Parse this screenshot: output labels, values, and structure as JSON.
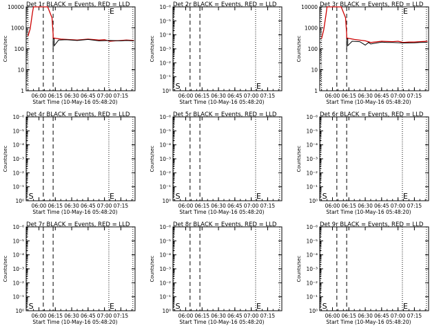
{
  "chart_data": [
    {
      "type": "line",
      "title": "Det 1r BLACK = Events, RED = LLD",
      "xlabel": "Start Time (10-May-16 05:48:20)",
      "ylabel": "Counts/sec",
      "scale": "log",
      "y_ticks": [
        "1",
        "10",
        "100",
        "1000",
        "10000"
      ],
      "x_ticks": [
        "06:00",
        "06:15",
        "06:30",
        "06:45",
        "07:00",
        "07:15"
      ],
      "x_range": [
        "05:48:20",
        "07:28"
      ],
      "y_range": [
        1,
        10000
      ],
      "markers": [
        {
          "label": "E",
          "time": "07:04"
        }
      ],
      "dashed_lines": [
        "05:50",
        "06:04",
        "06:13",
        "07:04",
        "07:26"
      ],
      "series": [
        {
          "color": "#cc0000",
          "x": [
            "05:50",
            "05:52",
            "05:54",
            "05:55",
            "05:56",
            "06:06",
            "06:08",
            "06:12",
            "06:13",
            "06:13",
            "06:20",
            "06:30",
            "06:35",
            "06:45",
            "06:55",
            "07:00",
            "07:05",
            "07:10",
            "07:15",
            "07:20",
            "07:27"
          ],
          "y": [
            400,
            900,
            5000,
            10000,
            10000,
            10000,
            10000,
            3000,
            500,
            330,
            290,
            270,
            260,
            290,
            260,
            270,
            230,
            240,
            250,
            260,
            250
          ]
        },
        {
          "color": "#000000",
          "x": [
            "06:13",
            "06:13",
            "06:14",
            "06:14",
            "06:18",
            "06:25",
            "06:35",
            "06:45",
            "06:55",
            "07:05",
            "07:15",
            "07:20",
            "07:27"
          ],
          "y": [
            90,
            300,
            300,
            140,
            260,
            270,
            250,
            280,
            240,
            250,
            240,
            250,
            240
          ]
        }
      ]
    },
    {
      "type": "line",
      "title": "Det 2r BLACK = Events, RED = LLD",
      "xlabel": "Start Time (10-May-16 05:48:20)",
      "ylabel": "Counts/sec",
      "scale": "log",
      "y_ticks": [
        "10⁰",
        "10⁻¹",
        "10⁻²",
        "10⁻³",
        "10⁻⁴",
        "10⁻⁵",
        "10⁻⁶"
      ],
      "x_ticks": [
        "06:00",
        "06:15",
        "06:30",
        "06:45",
        "07:00",
        "07:15"
      ],
      "x_range": [
        "05:48:20",
        "07:28"
      ],
      "y_range": [
        1,
        1e-06
      ],
      "markers": [
        {
          "label": "S",
          "time": "05:50"
        },
        {
          "label": "E",
          "time": "07:04"
        }
      ],
      "dashed_lines": [
        "05:49",
        "06:04",
        "06:13",
        "07:04",
        "07:26"
      ],
      "series": []
    },
    {
      "type": "line",
      "title": "Det 3r BLACK = Events, RED = LLD",
      "xlabel": "Start Time (10-May-16 05:48:20)",
      "ylabel": "Counts/sec",
      "scale": "log",
      "y_ticks": [
        "1",
        "10",
        "100",
        "1000",
        "10000"
      ],
      "x_ticks": [
        "06:00",
        "06:15",
        "06:30",
        "06:45",
        "07:00",
        "07:15"
      ],
      "x_range": [
        "05:48:20",
        "07:28"
      ],
      "y_range": [
        1,
        10000
      ],
      "markers": [
        {
          "label": "E",
          "time": "07:04"
        }
      ],
      "dashed_lines": [
        "05:50",
        "06:04",
        "06:13",
        "07:04",
        "07:26"
      ],
      "series": [
        {
          "color": "#cc0000",
          "x": [
            "05:50",
            "05:52",
            "05:54",
            "05:55",
            "05:56",
            "06:06",
            "06:08",
            "06:12",
            "06:13",
            "06:13",
            "06:20",
            "06:30",
            "06:35",
            "06:45",
            "06:55",
            "07:00",
            "07:05",
            "07:10",
            "07:15",
            "07:20",
            "07:27"
          ],
          "y": [
            300,
            800,
            4000,
            10000,
            10000,
            10000,
            10000,
            3000,
            500,
            330,
            280,
            240,
            200,
            230,
            220,
            230,
            200,
            210,
            210,
            220,
            230
          ]
        },
        {
          "color": "#000000",
          "x": [
            "06:13",
            "06:13",
            "06:14",
            "06:14",
            "06:18",
            "06:25",
            "06:30",
            "06:33",
            "06:35",
            "06:45",
            "06:50",
            "06:55",
            "07:05",
            "07:15",
            "07:20",
            "07:27"
          ],
          "y": [
            90,
            300,
            300,
            140,
            230,
            220,
            150,
            200,
            170,
            210,
            200,
            200,
            190,
            195,
            200,
            205
          ]
        }
      ]
    },
    {
      "type": "line",
      "title": "Det 4r BLACK = Events, RED = LLD",
      "xlabel": "Start Time (10-May-16 05:48:20)",
      "ylabel": "Counts/sec",
      "scale": "log",
      "y_ticks": [
        "10⁰",
        "10⁻¹",
        "10⁻²",
        "10⁻³",
        "10⁻⁴",
        "10⁻⁵",
        "10⁻⁶"
      ],
      "x_ticks": [
        "06:00",
        "06:15",
        "06:30",
        "06:45",
        "07:00",
        "07:15"
      ],
      "x_range": [
        "05:48:20",
        "07:28"
      ],
      "y_range": [
        1,
        1e-06
      ],
      "markers": [
        {
          "label": "S",
          "time": "05:50"
        },
        {
          "label": "E",
          "time": "07:04"
        }
      ],
      "dashed_lines": [
        "05:49",
        "06:04",
        "06:13",
        "07:04",
        "07:26"
      ],
      "series": []
    },
    {
      "type": "line",
      "title": "Det 5r BLACK = Events, RED = LLD",
      "xlabel": "Start Time (10-May-16 05:48:20)",
      "ylabel": "Counts/sec",
      "scale": "log",
      "y_ticks": [
        "10⁰",
        "10⁻¹",
        "10⁻²",
        "10⁻³",
        "10⁻⁴",
        "10⁻⁵",
        "10⁻⁶"
      ],
      "x_ticks": [
        "06:00",
        "06:15",
        "06:30",
        "06:45",
        "07:00",
        "07:15"
      ],
      "x_range": [
        "05:48:20",
        "07:28"
      ],
      "y_range": [
        1,
        1e-06
      ],
      "markers": [
        {
          "label": "S",
          "time": "05:50"
        },
        {
          "label": "E",
          "time": "07:04"
        }
      ],
      "dashed_lines": [
        "05:49",
        "06:04",
        "06:13",
        "07:04",
        "07:26"
      ],
      "series": []
    },
    {
      "type": "line",
      "title": "Det 6r BLACK = Events, RED = LLD",
      "xlabel": "Start Time (10-May-16 05:48:20)",
      "ylabel": "Counts/sec",
      "scale": "log",
      "y_ticks": [
        "10⁰",
        "10⁻¹",
        "10⁻²",
        "10⁻³",
        "10⁻⁴",
        "10⁻⁵",
        "10⁻⁶"
      ],
      "x_ticks": [
        "06:00",
        "06:15",
        "06:30",
        "06:45",
        "07:00",
        "07:15"
      ],
      "x_range": [
        "05:48:20",
        "07:28"
      ],
      "y_range": [
        1,
        1e-06
      ],
      "markers": [
        {
          "label": "S",
          "time": "05:50"
        },
        {
          "label": "E",
          "time": "07:04"
        }
      ],
      "dashed_lines": [
        "05:49",
        "06:04",
        "06:13",
        "07:04",
        "07:26"
      ],
      "series": []
    },
    {
      "type": "line",
      "title": "Det 7r BLACK = Events, RED = LLD",
      "xlabel": "Start Time (10-May-16 05:48:20)",
      "ylabel": "Counts/sec",
      "scale": "log",
      "y_ticks": [
        "10⁰",
        "10⁻¹",
        "10⁻²",
        "10⁻³",
        "10⁻⁴",
        "10⁻⁵",
        "10⁻⁶"
      ],
      "x_ticks": [
        "06:00",
        "06:15",
        "06:30",
        "06:45",
        "07:00",
        "07:15"
      ],
      "x_range": [
        "05:48:20",
        "07:28"
      ],
      "y_range": [
        1,
        1e-06
      ],
      "markers": [
        {
          "label": "S",
          "time": "05:50"
        },
        {
          "label": "E",
          "time": "07:04"
        }
      ],
      "dashed_lines": [
        "05:49",
        "06:04",
        "06:13",
        "07:04",
        "07:26"
      ],
      "series": []
    },
    {
      "type": "line",
      "title": "Det 8r BLACK = Events, RED = LLD",
      "xlabel": "Start Time (10-May-16 05:48:20)",
      "ylabel": "Counts/sec",
      "scale": "log",
      "y_ticks": [
        "10⁰",
        "10⁻¹",
        "10⁻²",
        "10⁻³",
        "10⁻⁴",
        "10⁻⁵",
        "10⁻⁶"
      ],
      "x_ticks": [
        "06:00",
        "06:15",
        "06:30",
        "06:45",
        "07:00",
        "07:15"
      ],
      "x_range": [
        "05:48:20",
        "07:28"
      ],
      "y_range": [
        1,
        1e-06
      ],
      "markers": [
        {
          "label": "S",
          "time": "05:50"
        },
        {
          "label": "E",
          "time": "07:04"
        }
      ],
      "dashed_lines": [
        "05:49",
        "06:04",
        "06:13",
        "07:04",
        "07:26"
      ],
      "series": []
    },
    {
      "type": "line",
      "title": "Det 9r BLACK = Events, RED = LLD",
      "xlabel": "Start Time (10-May-16 05:48:20)",
      "ylabel": "Counts/sec",
      "scale": "log",
      "y_ticks": [
        "10⁰",
        "10⁻¹",
        "10⁻²",
        "10⁻³",
        "10⁻⁴",
        "10⁻⁵",
        "10⁻⁶"
      ],
      "x_ticks": [
        "06:00",
        "06:15",
        "06:30",
        "06:45",
        "07:00",
        "07:15"
      ],
      "x_range": [
        "05:48:20",
        "07:28"
      ],
      "y_range": [
        1,
        1e-06
      ],
      "markers": [
        {
          "label": "S",
          "time": "05:50"
        },
        {
          "label": "E",
          "time": "07:04"
        }
      ],
      "dashed_lines": [
        "05:49",
        "06:04",
        "06:13",
        "07:04",
        "07:26"
      ],
      "series": []
    }
  ]
}
